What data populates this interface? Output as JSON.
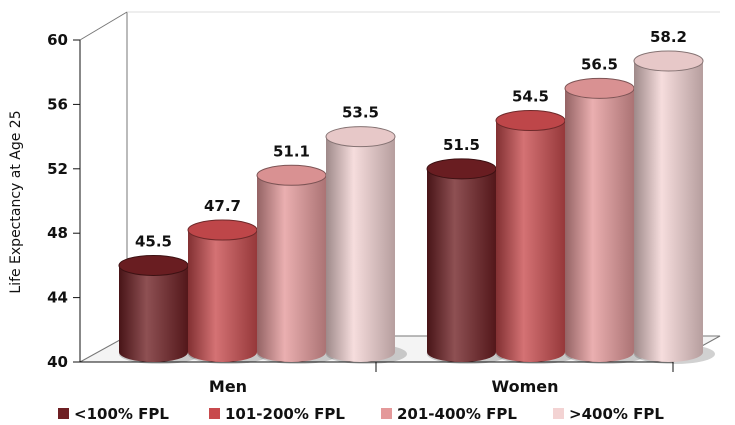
{
  "chart_data": {
    "type": "bar",
    "ylabel": "Life Expectancy at Age 25",
    "ylim": [
      40,
      60
    ],
    "yticks": [
      40,
      44,
      48,
      52,
      56,
      60
    ],
    "categories": [
      "Men",
      "Women"
    ],
    "series": [
      {
        "name": "<100% FPL",
        "values": [
          45.5,
          51.5
        ],
        "color": "#6e1f23"
      },
      {
        "name": "101-200% FPL",
        "values": [
          47.7,
          54.5
        ],
        "color": "#c84a4d"
      },
      {
        "name": "201-400% FPL",
        "values": [
          51.1,
          56.5
        ],
        "color": "#e4999a"
      },
      {
        "name": ">400% FPL",
        "values": [
          53.5,
          58.2
        ],
        "color": "#f3d3d3"
      }
    ],
    "data_labels": true,
    "legend": "bottom",
    "grid": false,
    "style": "3d-cylinder"
  }
}
